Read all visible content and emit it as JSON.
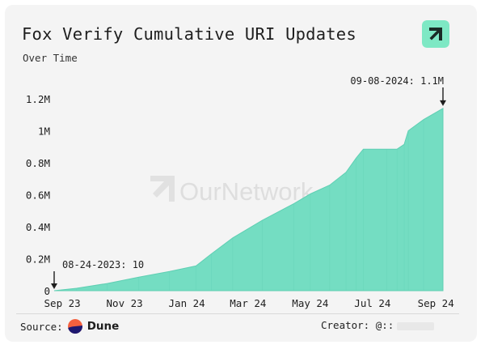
{
  "header": {
    "title": "Fox Verify Cumulative URI Updates",
    "subtitle": "Over Time"
  },
  "watermark": {
    "text": "OurNetwork"
  },
  "colors": {
    "fill": "#74ddc2",
    "stroke": "#5fcfb3",
    "badge": "#7ee8c4",
    "badge_icon": "#1a2a25",
    "text": "#1e1e1e"
  },
  "chart_data": {
    "type": "area",
    "xlabel": "",
    "ylabel": "",
    "ylim": [
      0,
      1200000
    ],
    "y_ticks": [
      {
        "value": 0,
        "label": "0"
      },
      {
        "value": 200000,
        "label": "0.2M"
      },
      {
        "value": 400000,
        "label": "0.4M"
      },
      {
        "value": 600000,
        "label": "0.6M"
      },
      {
        "value": 800000,
        "label": "0.8M"
      },
      {
        "value": 1000000,
        "label": "1M"
      },
      {
        "value": 1200000,
        "label": "1.2M"
      }
    ],
    "x_range": [
      "2023-08-24",
      "2024-09-08"
    ],
    "x_ticks": [
      {
        "date": "2023-09-01",
        "label": "Sep 23"
      },
      {
        "date": "2023-11-01",
        "label": "Nov 23"
      },
      {
        "date": "2024-01-01",
        "label": "Jan 24"
      },
      {
        "date": "2024-03-01",
        "label": "Mar 24"
      },
      {
        "date": "2024-05-01",
        "label": "May 24"
      },
      {
        "date": "2024-07-01",
        "label": "Jul 24"
      },
      {
        "date": "2024-09-01",
        "label": "Sep 24"
      }
    ],
    "series": [
      {
        "points": [
          [
            "2023-08-24",
            10
          ],
          [
            "2023-09-15",
            15000
          ],
          [
            "2023-10-15",
            45000
          ],
          [
            "2023-11-15",
            85000
          ],
          [
            "2023-12-15",
            120000
          ],
          [
            "2024-01-10",
            155000
          ],
          [
            "2024-01-25",
            230000
          ],
          [
            "2024-02-15",
            330000
          ],
          [
            "2024-03-15",
            440000
          ],
          [
            "2024-04-15",
            545000
          ],
          [
            "2024-05-01",
            605000
          ],
          [
            "2024-05-20",
            660000
          ],
          [
            "2024-06-05",
            740000
          ],
          [
            "2024-06-15",
            830000
          ],
          [
            "2024-06-22",
            885000
          ],
          [
            "2024-07-15",
            885000
          ],
          [
            "2024-07-25",
            885000
          ],
          [
            "2024-08-01",
            915000
          ],
          [
            "2024-08-05",
            1000000
          ],
          [
            "2024-08-20",
            1070000
          ],
          [
            "2024-09-08",
            1140000
          ]
        ]
      }
    ],
    "annotations": [
      {
        "date": "2023-08-24",
        "value": 10,
        "label": "08-24-2023: 10"
      },
      {
        "date": "2024-09-08",
        "value": 1140000,
        "label": "09-08-2024: 1.1M"
      }
    ],
    "grid": false,
    "legend": "none"
  },
  "footer": {
    "source_label": "Source:",
    "source_name": "Dune",
    "creator_label": "Creator: @::"
  }
}
